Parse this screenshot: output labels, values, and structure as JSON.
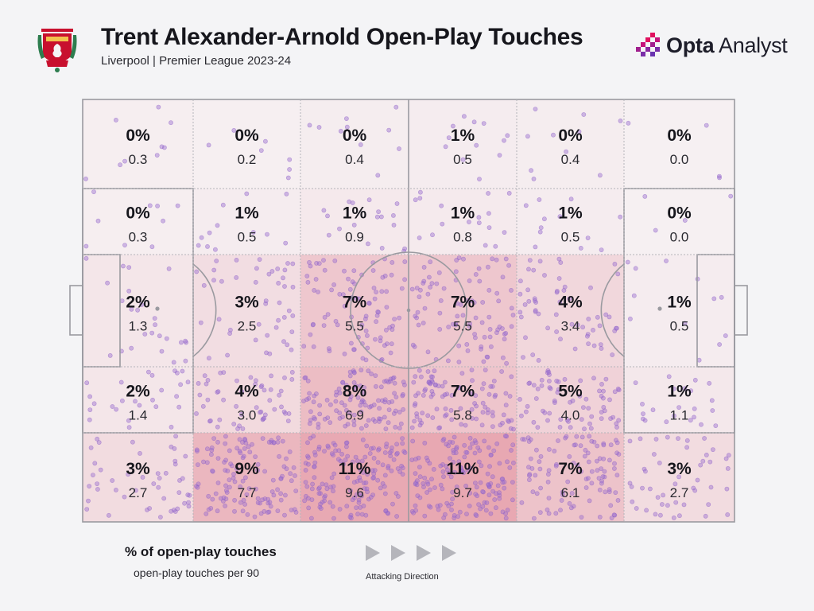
{
  "header": {
    "title": "Trent Alexander-Arnold Open-Play Touches",
    "subtitle": "Liverpool | Premier League 2023-24",
    "crest_text": "LIVERPOOL",
    "crest_motto": "YOU'LL NEVER WALK ALONE",
    "brand_bold": "Opta",
    "brand_light": " Analyst"
  },
  "colors": {
    "background": "#f4f4f6",
    "pitch_lines": "#9a9aa0",
    "heat_base": "#e6a6ad",
    "dots": "#9b6fd0",
    "crest_red": "#c8102e",
    "brand_red": "#e0115f",
    "brand_purple": "#7a2ea8"
  },
  "chart_data": {
    "type": "heatmap",
    "description_rows": "rows from top touchline to bottom touchline; columns from own goal (left) to opponent goal (right)",
    "columns": 6,
    "rows": 5,
    "percentages": [
      [
        "0%",
        "0%",
        "0%",
        "1%",
        "0%",
        "0%"
      ],
      [
        "0%",
        "1%",
        "1%",
        "1%",
        "1%",
        "0%"
      ],
      [
        "2%",
        "3%",
        "7%",
        "7%",
        "4%",
        "1%"
      ],
      [
        "2%",
        "4%",
        "8%",
        "7%",
        "5%",
        "1%"
      ],
      [
        "3%",
        "9%",
        "11%",
        "11%",
        "7%",
        "3%"
      ]
    ],
    "per90": [
      [
        "0.3",
        "0.2",
        "0.4",
        "0.5",
        "0.4",
        "0.0"
      ],
      [
        "0.3",
        "0.5",
        "0.9",
        "0.8",
        "0.5",
        "0.0"
      ],
      [
        "1.3",
        "2.5",
        "5.5",
        "5.5",
        "3.4",
        "0.5"
      ],
      [
        "1.4",
        "3.0",
        "6.9",
        "5.8",
        "4.0",
        "1.1"
      ],
      [
        "2.7",
        "7.7",
        "9.6",
        "9.7",
        "6.1",
        "2.7"
      ]
    ],
    "legend": {
      "percent_label": "% of open-play touches",
      "per90_label": "open-play touches per 90"
    },
    "direction_label": "Attacking Direction"
  }
}
